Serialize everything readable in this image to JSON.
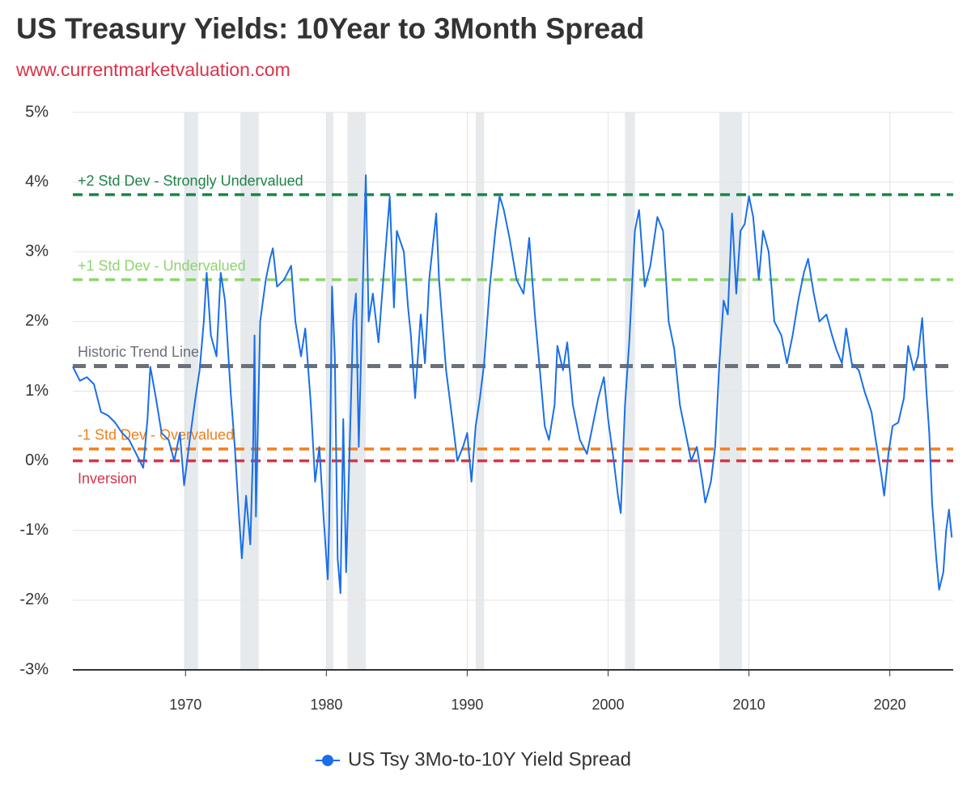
{
  "chart_data": {
    "type": "line",
    "title": "US Treasury Yields: 10Year to 3Month Spread",
    "subtitle": "www.currentmarketvaluation.com",
    "xlim": [
      1962,
      2024.5
    ],
    "xticks": [
      1970,
      1980,
      1990,
      2000,
      2010,
      2020
    ],
    "ylim": [
      -3,
      5
    ],
    "yticks": [
      {
        "value": -3,
        "label": "-3%"
      },
      {
        "value": -2,
        "label": "-2%"
      },
      {
        "value": -1,
        "label": "-1%"
      },
      {
        "value": 0,
        "label": "0%"
      },
      {
        "value": 1,
        "label": "1%"
      },
      {
        "value": 2,
        "label": "2%"
      },
      {
        "value": 3,
        "label": "3%"
      },
      {
        "value": 4,
        "label": "4%"
      },
      {
        "value": 5,
        "label": "5%"
      }
    ],
    "grid": true,
    "recessions": [
      [
        1969.9,
        1970.9
      ],
      [
        1973.9,
        1975.2
      ],
      [
        1980.0,
        1980.5
      ],
      [
        1981.5,
        1982.8
      ],
      [
        1990.6,
        1991.2
      ],
      [
        2001.2,
        2001.9
      ],
      [
        2007.9,
        2009.5
      ]
    ],
    "reference_lines": [
      {
        "label": "+2 Std Dev - Strongly Undervalued",
        "value": 3.82,
        "color": "#1e8449"
      },
      {
        "label": "+1 Std Dev - Undervalued",
        "value": 2.6,
        "color": "#8fd46e"
      },
      {
        "label": "Historic Trend Line",
        "value": 1.36,
        "color": "#6b7079"
      },
      {
        "label": "-1 Std Dev - Overvalued",
        "value": 0.17,
        "color": "#f07f1c"
      },
      {
        "label": "Inversion",
        "value": 0,
        "color": "#d93349"
      }
    ],
    "x": [
      1962.0,
      1962.5,
      1963.0,
      1963.5,
      1964.0,
      1964.5,
      1965.0,
      1965.5,
      1966.0,
      1966.5,
      1967.0,
      1967.3,
      1967.5,
      1967.9,
      1968.3,
      1968.8,
      1969.2,
      1969.6,
      1969.9,
      1970.3,
      1970.7,
      1971.0,
      1971.3,
      1971.5,
      1971.8,
      1972.2,
      1972.5,
      1972.8,
      1973.2,
      1973.5,
      1973.8,
      1974.0,
      1974.3,
      1974.6,
      1974.8,
      1974.9,
      1975.0,
      1975.3,
      1975.7,
      1976.0,
      1976.2,
      1976.5,
      1977.0,
      1977.5,
      1977.8,
      1978.2,
      1978.5,
      1978.9,
      1979.2,
      1979.5,
      1979.8,
      1980.1,
      1980.2,
      1980.4,
      1980.6,
      1980.8,
      1981.0,
      1981.2,
      1981.4,
      1981.6,
      1981.9,
      1982.1,
      1982.3,
      1982.6,
      1982.8,
      1983.0,
      1983.3,
      1983.7,
      1984.0,
      1984.5,
      1984.8,
      1985.0,
      1985.5,
      1985.8,
      1986.0,
      1986.3,
      1986.7,
      1987.0,
      1987.3,
      1987.8,
      1988.0,
      1988.5,
      1989.0,
      1989.3,
      1989.7,
      1990.0,
      1990.3,
      1990.6,
      1990.9,
      1991.2,
      1991.6,
      1992.0,
      1992.3,
      1992.6,
      1993.0,
      1993.5,
      1994.0,
      1994.4,
      1994.8,
      1995.2,
      1995.5,
      1995.8,
      1996.2,
      1996.4,
      1996.8,
      1997.1,
      1997.5,
      1998.0,
      1998.5,
      1998.9,
      1999.3,
      1999.7,
      2000.0,
      2000.4,
      2000.7,
      2000.9,
      2001.2,
      2001.5,
      2001.9,
      2002.2,
      2002.6,
      2003.0,
      2003.5,
      2003.9,
      2004.3,
      2004.7,
      2005.1,
      2005.5,
      2005.9,
      2006.3,
      2006.7,
      2006.9,
      2007.3,
      2007.6,
      2007.9,
      2008.2,
      2008.5,
      2008.8,
      2009.1,
      2009.4,
      2009.7,
      2010.0,
      2010.3,
      2010.7,
      2011.0,
      2011.4,
      2011.8,
      2012.3,
      2012.7,
      2013.1,
      2013.5,
      2013.9,
      2014.2,
      2014.6,
      2015.0,
      2015.5,
      2015.9,
      2016.2,
      2016.6,
      2016.9,
      2017.3,
      2017.8,
      2018.2,
      2018.7,
      2019.0,
      2019.4,
      2019.6,
      2019.9,
      2020.2,
      2020.6,
      2021.0,
      2021.3,
      2021.7,
      2022.0,
      2022.3,
      2022.6,
      2022.8,
      2023.0,
      2023.3,
      2023.5,
      2023.8,
      2024.0,
      2024.2,
      2024.4
    ],
    "series": [
      {
        "name": "US Tsy 3Mo-to-10Y Yield Spread",
        "color": "#1a6fe8",
        "values": [
          1.35,
          1.15,
          1.2,
          1.1,
          0.7,
          0.65,
          0.55,
          0.4,
          0.3,
          0.1,
          -0.1,
          0.6,
          1.35,
          0.9,
          0.4,
          0.3,
          0.0,
          0.4,
          -0.35,
          0.3,
          0.9,
          1.3,
          2.0,
          2.7,
          1.8,
          1.5,
          2.7,
          2.3,
          1.0,
          0.2,
          -0.8,
          -1.4,
          -0.5,
          -1.2,
          0.2,
          1.8,
          -0.8,
          2.0,
          2.6,
          2.9,
          3.05,
          2.5,
          2.6,
          2.8,
          2.0,
          1.5,
          1.9,
          0.8,
          -0.3,
          0.2,
          -0.8,
          -1.7,
          -0.9,
          2.5,
          1.5,
          -1.4,
          -1.9,
          0.6,
          -1.6,
          -0.2,
          2.0,
          2.4,
          0.2,
          2.6,
          4.1,
          2.0,
          2.4,
          1.7,
          2.5,
          3.8,
          2.2,
          3.3,
          3.0,
          2.2,
          1.8,
          0.9,
          2.1,
          1.4,
          2.6,
          3.55,
          2.6,
          1.3,
          0.5,
          0.0,
          0.2,
          0.4,
          -0.3,
          0.5,
          0.9,
          1.4,
          2.5,
          3.3,
          3.8,
          3.6,
          3.2,
          2.6,
          2.4,
          3.2,
          2.1,
          1.2,
          0.5,
          0.3,
          0.8,
          1.65,
          1.3,
          1.7,
          0.8,
          0.3,
          0.1,
          0.5,
          0.9,
          1.2,
          0.6,
          0.0,
          -0.5,
          -0.75,
          0.8,
          1.7,
          3.3,
          3.6,
          2.5,
          2.8,
          3.5,
          3.3,
          2.0,
          1.6,
          0.8,
          0.4,
          0.0,
          0.2,
          -0.3,
          -0.6,
          -0.3,
          0.2,
          1.4,
          2.3,
          2.1,
          3.55,
          2.4,
          3.3,
          3.4,
          3.8,
          3.5,
          2.6,
          3.3,
          3.0,
          2.0,
          1.8,
          1.4,
          1.8,
          2.3,
          2.7,
          2.9,
          2.4,
          2.0,
          2.1,
          1.8,
          1.6,
          1.4,
          1.9,
          1.4,
          1.3,
          1.0,
          0.7,
          0.3,
          -0.2,
          -0.5,
          0.1,
          0.5,
          0.55,
          0.9,
          1.65,
          1.3,
          1.5,
          2.05,
          1.0,
          0.4,
          -0.6,
          -1.4,
          -1.85,
          -1.6,
          -1.0,
          -0.7,
          -1.1
        ]
      }
    ]
  }
}
